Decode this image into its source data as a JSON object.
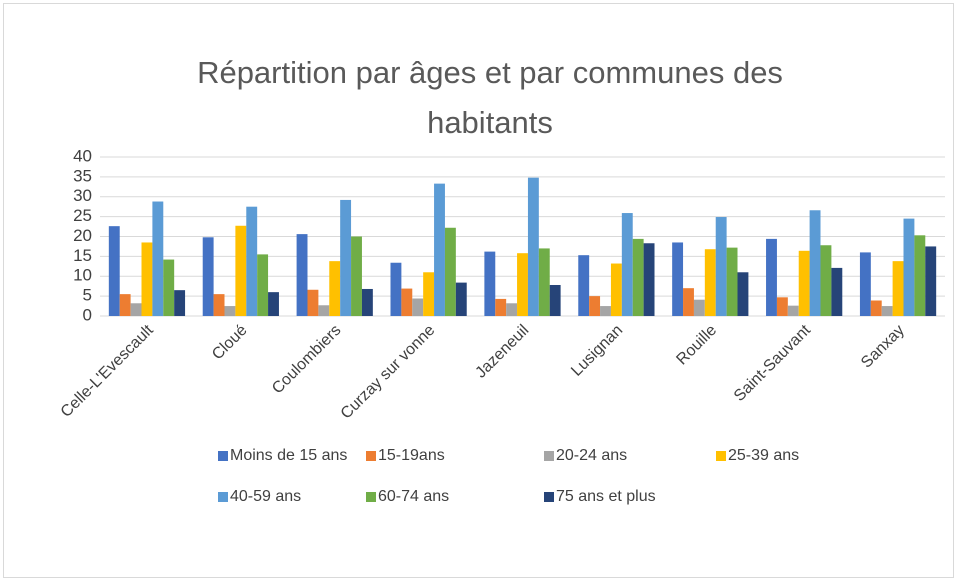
{
  "chart_data": {
    "type": "bar",
    "title": "Répartition par âges et par communes des habitants",
    "categories": [
      "Celle-L'Evescault",
      "Cloué",
      "Coulombiers",
      "Curzay sur vonne",
      "Jazeneuil",
      "Lusignan",
      "Rouille",
      "Saint-Sauvant",
      "Sanxay"
    ],
    "series": [
      {
        "name": "Moins de 15 ans",
        "color": "#4472c4",
        "values": [
          22.6,
          19.8,
          20.6,
          13.4,
          16.2,
          15.3,
          18.5,
          19.4,
          16
        ]
      },
      {
        "name": "15-19ans",
        "color": "#ed7d31",
        "values": [
          5.5,
          5.5,
          6.6,
          6.9,
          4.3,
          5,
          7,
          4.7,
          3.9
        ]
      },
      {
        "name": "20-24 ans",
        "color": "#a5a5a5",
        "values": [
          3.2,
          2.5,
          2.7,
          4.4,
          3.2,
          2.5,
          4.1,
          2.6,
          2.5
        ]
      },
      {
        "name": "25-39 ans",
        "color": "#ffc000",
        "values": [
          18.5,
          22.7,
          13.8,
          11,
          15.8,
          13.2,
          16.8,
          16.4,
          13.8
        ]
      },
      {
        "name": "40-59 ans",
        "color": "#5b9bd5",
        "values": [
          28.8,
          27.5,
          29.2,
          33.3,
          34.8,
          25.9,
          24.9,
          26.6,
          24.5
        ]
      },
      {
        "name": "60-74 ans",
        "color": "#70ad47",
        "values": [
          14.2,
          15.5,
          20,
          22.2,
          17,
          19.4,
          17.2,
          17.8,
          20.3
        ]
      },
      {
        "name": "75 ans et plus",
        "color": "#264478",
        "values": [
          6.5,
          6,
          6.8,
          8.4,
          7.8,
          18.3,
          11,
          12.1,
          17.5
        ]
      }
    ],
    "ylim": [
      0,
      40
    ],
    "yticks": [
      0,
      5,
      10,
      15,
      20,
      25,
      30,
      35,
      40
    ],
    "grid": true,
    "legend": "bottom"
  }
}
